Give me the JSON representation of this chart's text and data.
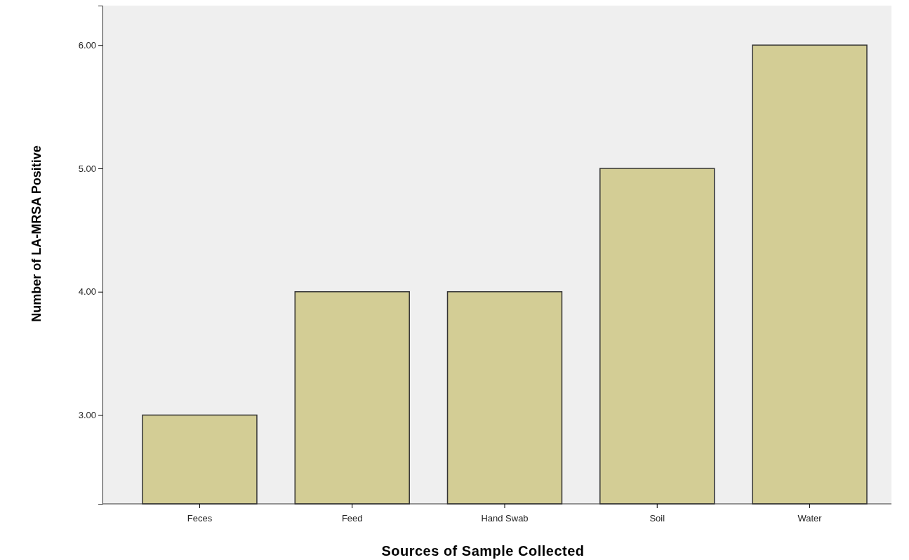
{
  "chart_data": {
    "type": "bar",
    "xlabel": "Sources of Sample Collected",
    "ylabel": "Number of LA-MRSA Positive",
    "categories": [
      "Feces",
      "Feed",
      "Hand Swab",
      "Soil",
      "Water"
    ],
    "values": [
      3,
      4,
      4,
      5,
      6
    ],
    "color": "#d3cd95",
    "ylim": [
      2.28,
      6.32
    ],
    "yticks": [
      {
        "value": 3,
        "label": "3.00"
      },
      {
        "value": 4,
        "label": "4.00"
      },
      {
        "value": 5,
        "label": "5.00"
      },
      {
        "value": 6,
        "label": "6.00"
      }
    ],
    "grid": false
  }
}
